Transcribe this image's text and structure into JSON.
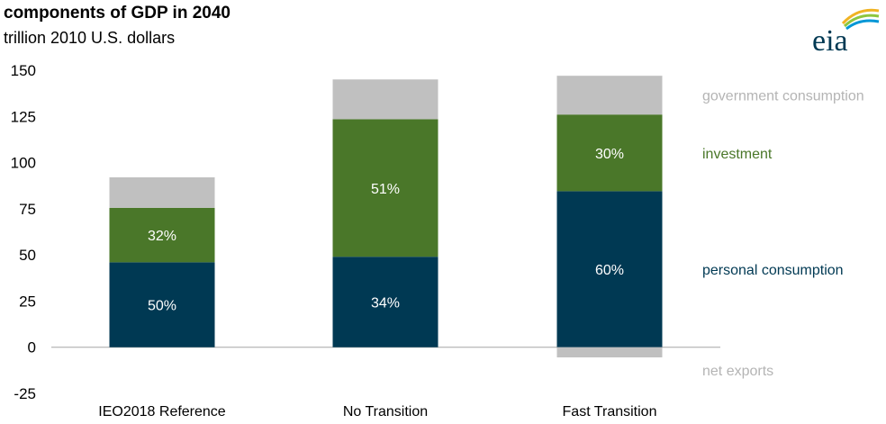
{
  "header": {
    "title": "components of GDP in 2040",
    "subtitle": "trillion 2010 U.S. dollars"
  },
  "logo": {
    "text": "eia",
    "icon": "eia-logo-icon"
  },
  "colors": {
    "personal_consumption": "#003953",
    "investment": "#4a7729",
    "government_consumption": "#c0c0c0",
    "net_exports": "#c0c0c0",
    "bar_label_text": "#ffffff",
    "axis_text": "#000000"
  },
  "chart_data": {
    "type": "bar",
    "stacked": true,
    "title": "components of GDP in 2040",
    "subtitle": "trillion 2010 U.S. dollars",
    "categories": [
      "IEO2018 Reference",
      "No Transition",
      "Fast Transition"
    ],
    "ylim": [
      -25,
      150
    ],
    "yticks": [
      150,
      125,
      100,
      75,
      50,
      25,
      0,
      -25
    ],
    "legend_placement": "right",
    "series": [
      {
        "name": "personal consumption",
        "color": "#003953",
        "values": [
          46,
          49,
          84.5
        ],
        "labels": [
          "50%",
          "34%",
          "60%"
        ]
      },
      {
        "name": "investment",
        "color": "#4a7729",
        "values": [
          29.5,
          74.5,
          41.5
        ],
        "labels": [
          "32%",
          "51%",
          "30%"
        ]
      },
      {
        "name": "government consumption",
        "color": "#c0c0c0",
        "values": [
          16.5,
          21.5,
          21
        ],
        "labels": [
          "",
          "",
          ""
        ]
      },
      {
        "name": "net exports",
        "color": "#c0c0c0",
        "values": [
          0,
          0,
          -5.5
        ],
        "labels": [
          "",
          "",
          ""
        ]
      }
    ]
  }
}
